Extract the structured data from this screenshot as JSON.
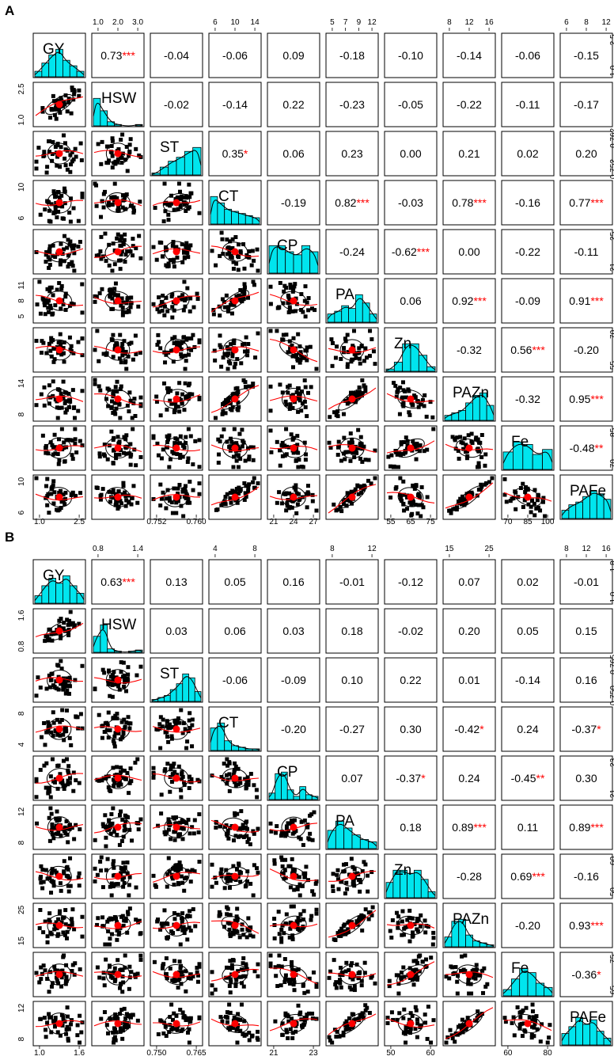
{
  "panels": [
    {
      "letter": "A"
    },
    {
      "letter": "B"
    }
  ],
  "colors": {
    "histogram": "#00E5EE",
    "points": "#000000",
    "smooth": "#FF0000",
    "centroid": "#FF0000",
    "stars": "#FF0000",
    "frame": "#000000"
  },
  "chart_data": [
    {
      "type": "scatter-matrix",
      "variables": [
        "GY",
        "HSW",
        "ST",
        "CT",
        "CP",
        "PA",
        "Zn",
        "PAZn",
        "Fe",
        "PAFe"
      ],
      "axis_ticks": {
        "GY": [
          "1.0",
          "2.5"
        ],
        "HSW": [
          "1.0",
          "2.0",
          "3.0"
        ],
        "ST": [
          "0.752",
          "0.760"
        ],
        "CT": [
          "6",
          "10",
          "14"
        ],
        "CP": [
          "21",
          "24",
          "27"
        ],
        "PA": [
          "5",
          "7",
          "9",
          "12"
        ],
        "Zn": [
          "55",
          "65",
          "75"
        ],
        "PAZn": [
          "8",
          "12",
          "16"
        ],
        "Fe": [
          "70",
          "85",
          "100"
        ],
        "PAFe": [
          "6",
          "8",
          "12"
        ]
      },
      "left_ticks": [
        [],
        [
          "1.0",
          "2.5"
        ],
        [],
        [
          "6",
          "10"
        ],
        [],
        [
          "5",
          "8",
          "11"
        ],
        [],
        [
          "8",
          "14"
        ],
        [],
        [
          "6",
          "10"
        ]
      ],
      "right_ticks": [
        [
          "1.0",
          "2.5"
        ],
        [],
        [
          "0.752",
          "0.762"
        ],
        [],
        [
          "21",
          "25"
        ],
        [],
        [
          "55",
          "70"
        ],
        [],
        [
          "70",
          "85"
        ],
        []
      ],
      "bottom_ticks": [
        [
          "1.0",
          "2.5"
        ],
        [],
        [
          "0.752",
          "0.760"
        ],
        [],
        [
          "21",
          "24",
          "27"
        ],
        [],
        [
          "55",
          "65",
          "75"
        ],
        [],
        [
          "70",
          "85",
          "100"
        ],
        []
      ],
      "top_ticks": [
        [],
        [
          "1.0",
          "2.0",
          "3.0"
        ],
        [],
        [
          "6",
          "10",
          "14"
        ],
        [],
        [
          "5",
          "7",
          "9",
          "12"
        ],
        [],
        [
          "8",
          "12",
          "16"
        ],
        [],
        [
          "6",
          "8",
          "12"
        ]
      ],
      "correlations": [
        [
          "0.73",
          "***"
        ],
        [
          "-0.04",
          ""
        ],
        [
          "-0.06",
          ""
        ],
        [
          "0.09",
          ""
        ],
        [
          "-0.18",
          ""
        ],
        [
          "-0.10",
          ""
        ],
        [
          "-0.14",
          ""
        ],
        [
          "-0.06",
          ""
        ],
        [
          "-0.15",
          ""
        ],
        [
          "-0.02",
          ""
        ],
        [
          "-0.14",
          ""
        ],
        [
          "0.22",
          ""
        ],
        [
          "-0.23",
          ""
        ],
        [
          "-0.05",
          ""
        ],
        [
          "-0.22",
          ""
        ],
        [
          "-0.11",
          ""
        ],
        [
          "-0.17",
          ""
        ],
        [
          "0.35",
          "*"
        ],
        [
          "0.06",
          ""
        ],
        [
          "0.23",
          ""
        ],
        [
          "0.00",
          ""
        ],
        [
          "0.21",
          ""
        ],
        [
          "0.02",
          ""
        ],
        [
          "0.20",
          ""
        ],
        [
          "-0.19",
          ""
        ],
        [
          "0.82",
          "***"
        ],
        [
          "-0.03",
          ""
        ],
        [
          "0.78",
          "***"
        ],
        [
          "-0.16",
          ""
        ],
        [
          "0.77",
          "***"
        ],
        [
          "-0.24",
          ""
        ],
        [
          "-0.62",
          "***"
        ],
        [
          "0.00",
          ""
        ],
        [
          "-0.22",
          ""
        ],
        [
          "-0.11",
          ""
        ],
        [
          "0.06",
          ""
        ],
        [
          "0.92",
          "***"
        ],
        [
          "-0.09",
          ""
        ],
        [
          "0.91",
          "***"
        ],
        [
          "-0.32",
          ""
        ],
        [
          "0.56",
          "***"
        ],
        [
          "-0.20",
          ""
        ],
        [
          "-0.32",
          ""
        ],
        [
          "0.95",
          "***"
        ],
        [
          "-0.48",
          "**"
        ]
      ],
      "histograms": [
        [
          2,
          5,
          8,
          10,
          6,
          4,
          2
        ],
        [
          20,
          11,
          3,
          1,
          0,
          0,
          1
        ],
        [
          1,
          4,
          7,
          9,
          12,
          14
        ],
        [
          13,
          10,
          7,
          6,
          5,
          4,
          3
        ],
        [
          9,
          9,
          7,
          6,
          9,
          7
        ],
        [
          3,
          4,
          6,
          5,
          10,
          7,
          3
        ],
        [
          1,
          4,
          12,
          12,
          7,
          2
        ],
        [
          2,
          3,
          4,
          7,
          10,
          11,
          6
        ],
        [
          7,
          11,
          10,
          6,
          8
        ],
        [
          3,
          5,
          6,
          8,
          10,
          9,
          7
        ]
      ]
    },
    {
      "type": "scatter-matrix",
      "variables": [
        "GY",
        "HSW",
        "ST",
        "CT",
        "CP",
        "PA",
        "Zn",
        "PAZn",
        "Fe",
        "PAFe"
      ],
      "axis_ticks": {
        "GY": [
          "1.0",
          "1.6"
        ],
        "HSW": [
          "0.8",
          "1.4"
        ],
        "ST": [
          "0.750",
          "0.765"
        ],
        "CT": [
          "4",
          "8"
        ],
        "CP": [
          "21",
          "23"
        ],
        "PA": [
          "8",
          "12"
        ],
        "Zn": [
          "50",
          "60"
        ],
        "PAZn": [
          "15",
          "25"
        ],
        "Fe": [
          "60",
          "80"
        ],
        "PAFe": [
          "8",
          "12",
          "16"
        ]
      },
      "left_ticks": [
        [],
        [
          "0.8",
          "1.6"
        ],
        [],
        [
          "4",
          "8"
        ],
        [],
        [
          "8",
          "12"
        ],
        [],
        [
          "15",
          "25"
        ],
        [],
        [
          "8",
          "12"
        ]
      ],
      "right_ticks": [
        [
          "1.0",
          "1.8"
        ],
        [],
        [
          "0.750",
          "0.765"
        ],
        [],
        [
          "21",
          "23"
        ],
        [],
        [
          "50",
          "60"
        ],
        [],
        [
          "65",
          "75"
        ],
        []
      ],
      "bottom_ticks": [
        [
          "1.0",
          "1.6"
        ],
        [],
        [
          "0.750",
          "0.765"
        ],
        [],
        [
          "21",
          "23"
        ],
        [],
        [
          "50",
          "60"
        ],
        [],
        [
          "60",
          "80"
        ],
        []
      ],
      "top_ticks": [
        [],
        [
          "0.8",
          "1.4"
        ],
        [],
        [
          "4",
          "8"
        ],
        [],
        [
          "8",
          "12"
        ],
        [],
        [
          "15",
          "25"
        ],
        [],
        [
          "8",
          "12",
          "16"
        ]
      ],
      "correlations": [
        [
          "0.63",
          "***"
        ],
        [
          "0.13",
          ""
        ],
        [
          "0.05",
          ""
        ],
        [
          "0.16",
          ""
        ],
        [
          "-0.01",
          ""
        ],
        [
          "-0.12",
          ""
        ],
        [
          "0.07",
          ""
        ],
        [
          "0.02",
          ""
        ],
        [
          "-0.01",
          ""
        ],
        [
          "0.03",
          ""
        ],
        [
          "0.06",
          ""
        ],
        [
          "0.03",
          ""
        ],
        [
          "0.18",
          ""
        ],
        [
          "-0.02",
          ""
        ],
        [
          "0.20",
          ""
        ],
        [
          "0.05",
          ""
        ],
        [
          "0.15",
          ""
        ],
        [
          "-0.06",
          ""
        ],
        [
          "-0.09",
          ""
        ],
        [
          "0.10",
          ""
        ],
        [
          "0.22",
          ""
        ],
        [
          "0.01",
          ""
        ],
        [
          "-0.14",
          ""
        ],
        [
          "0.16",
          ""
        ],
        [
          "-0.20",
          ""
        ],
        [
          "-0.27",
          ""
        ],
        [
          "0.30",
          ""
        ],
        [
          "-0.42",
          "*"
        ],
        [
          "0.24",
          ""
        ],
        [
          "-0.37",
          "*"
        ],
        [
          "0.07",
          ""
        ],
        [
          "-0.37",
          "*"
        ],
        [
          "0.24",
          ""
        ],
        [
          "-0.45",
          "**"
        ],
        [
          "0.30",
          ""
        ],
        [
          "0.18",
          ""
        ],
        [
          "0.89",
          "***"
        ],
        [
          "0.11",
          ""
        ],
        [
          "0.89",
          "***"
        ],
        [
          "-0.28",
          ""
        ],
        [
          "0.69",
          "***"
        ],
        [
          "-0.16",
          ""
        ],
        [
          "-0.20",
          ""
        ],
        [
          "0.93",
          "***"
        ],
        [
          "-0.36",
          "*"
        ]
      ],
      "histograms": [
        [
          3,
          7,
          10,
          8,
          11,
          7,
          4
        ],
        [
          14,
          24,
          3,
          1,
          0,
          1,
          2
        ],
        [
          1,
          2,
          3,
          6,
          9,
          14,
          12,
          5
        ],
        [
          14,
          17,
          6,
          3,
          2,
          1,
          1
        ],
        [
          4,
          16,
          17,
          6,
          2,
          8,
          3,
          2
        ],
        [
          8,
          12,
          9,
          6,
          4,
          3
        ],
        [
          5,
          9,
          9,
          8,
          9,
          6,
          2
        ],
        [
          5,
          13,
          14,
          6,
          3,
          2,
          1
        ],
        [
          3,
          8,
          13,
          11,
          6,
          4
        ],
        [
          5,
          8,
          12,
          9,
          11,
          6,
          3
        ]
      ]
    }
  ]
}
